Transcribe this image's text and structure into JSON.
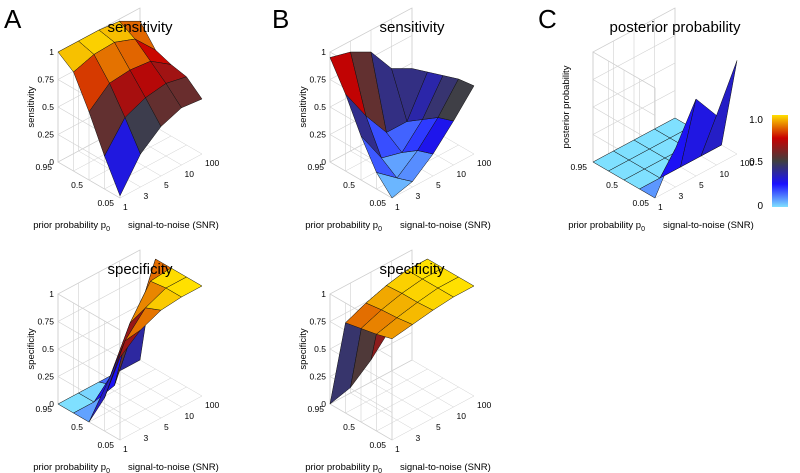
{
  "figure": {
    "panel_letters": [
      "A",
      "B",
      "C"
    ],
    "colorbar": {
      "ticks": [
        "1.0",
        "0.5",
        "0"
      ]
    }
  },
  "chart_data": [
    {
      "type": "surface",
      "panel": "A",
      "title": "sensitivity",
      "zlabel": "sensitivity",
      "xlabel": "prior probability p",
      "xlabel_subscript": "0",
      "ylabel": "signal-to-noise (SNR)",
      "x_ticks": [
        "0.05",
        "0.5",
        "0.95"
      ],
      "y_ticks": [
        "1",
        "3",
        "5",
        "10",
        "100"
      ],
      "z_ticks": [
        "0",
        "0.25",
        "0.5",
        "0.75",
        "1"
      ],
      "zlim": [
        0,
        1
      ],
      "prior": [
        0.05,
        0.25,
        0.5,
        0.75,
        0.95
      ],
      "snr": [
        1,
        3,
        5,
        10,
        100
      ],
      "z": [
        [
          0.02,
          0.3,
          0.45,
          0.52,
          0.5
        ],
        [
          0.3,
          0.55,
          0.63,
          0.66,
          0.62
        ],
        [
          0.62,
          0.78,
          0.8,
          0.78,
          0.65
        ],
        [
          0.9,
          0.96,
          0.97,
          0.9,
          0.7
        ],
        [
          1.0,
          1.0,
          1.0,
          0.98,
          0.88
        ]
      ]
    },
    {
      "type": "surface",
      "panel": "B",
      "title": "sensitivity",
      "zlabel": "sensitivity",
      "xlabel": "prior probability p",
      "xlabel_subscript": "0",
      "ylabel": "signal-to-noise (SNR)",
      "x_ticks": [
        "0.05",
        "0.5",
        "0.95"
      ],
      "y_ticks": [
        "1",
        "3",
        "5",
        "10",
        "100"
      ],
      "z_ticks": [
        "0",
        "0.25",
        "0.5",
        "0.75",
        "1"
      ],
      "zlim": [
        0,
        1
      ],
      "prior": [
        0.05,
        0.25,
        0.5,
        0.75,
        0.95
      ],
      "snr": [
        1,
        3,
        5,
        10,
        100
      ],
      "z": [
        [
          0.0,
          0.05,
          0.2,
          0.4,
          0.62
        ],
        [
          0.15,
          0.0,
          0.15,
          0.35,
          0.6
        ],
        [
          0.4,
          0.1,
          0.05,
          0.25,
          0.55
        ],
        [
          0.7,
          0.4,
          0.15,
          0.15,
          0.5
        ],
        [
          0.95,
          0.9,
          0.8,
          0.55,
          0.45
        ]
      ]
    },
    {
      "type": "surface",
      "panel": "C",
      "title": "posterior probability",
      "zlabel": "posterior probability",
      "xlabel": "prior probability p",
      "xlabel_subscript": "0",
      "ylabel": "signal-to-noise (SNR)",
      "x_ticks": [
        "0.05",
        "0.5",
        "0.95"
      ],
      "y_ticks": [
        "1",
        "3",
        "5",
        "10",
        "100"
      ],
      "z_ticks": [],
      "zlim": [
        0,
        1
      ],
      "prior": [
        0.05,
        0.25,
        0.5,
        0.75,
        0.95
      ],
      "snr": [
        1,
        3,
        5,
        10,
        100
      ],
      "z": [
        [
          0.0,
          0.35,
          0.7,
          0.45,
          0.85
        ],
        [
          0.0,
          0.0,
          0.0,
          0.0,
          0.0
        ],
        [
          0.0,
          0.0,
          0.0,
          0.0,
          0.0
        ],
        [
          0.0,
          0.0,
          0.0,
          0.0,
          0.0
        ],
        [
          0.0,
          0.0,
          0.0,
          0.0,
          0.0
        ]
      ]
    },
    {
      "type": "surface",
      "panel": "A",
      "title": "specificity",
      "zlabel": "specificity",
      "xlabel": "prior probability p",
      "xlabel_subscript": "0",
      "ylabel": "signal-to-noise (SNR)",
      "x_ticks": [
        "0.05",
        "0.5",
        "0.95"
      ],
      "y_ticks": [
        "1",
        "3",
        "5",
        "10",
        "100"
      ],
      "z_ticks": [
        "0",
        "0.25",
        "0.5",
        "0.75",
        "1"
      ],
      "zlim": [
        0,
        1
      ],
      "prior": [
        0.05,
        0.25,
        0.5,
        0.75,
        0.95
      ],
      "snr": [
        1,
        3,
        5,
        10,
        100
      ],
      "z": [
        [
          0.75,
          0.9,
          0.98,
          1.0,
          1.0
        ],
        [
          0.3,
          0.72,
          0.92,
          1.0,
          1.0
        ],
        [
          0.0,
          0.3,
          0.7,
          0.98,
          1.0
        ],
        [
          0.0,
          0.0,
          0.05,
          0.5,
          1.0
        ],
        [
          0.0,
          0.0,
          0.0,
          0.0,
          0.0
        ]
      ]
    },
    {
      "type": "surface",
      "panel": "B",
      "title": "specificity",
      "zlabel": "specificity",
      "xlabel": "prior probability p",
      "xlabel_subscript": "0",
      "ylabel": "signal-to-noise (SNR)",
      "x_ticks": [
        "0.05",
        "0.5",
        "0.95"
      ],
      "y_ticks": [
        "1",
        "3",
        "5",
        "10",
        "100"
      ],
      "z_ticks": [
        "0",
        "0.25",
        "0.5",
        "0.75",
        "1"
      ],
      "zlim": [
        0,
        1
      ],
      "prior": [
        0.05,
        0.25,
        0.5,
        0.75,
        0.95
      ],
      "snr": [
        1,
        3,
        5,
        10,
        100
      ],
      "z": [
        [
          0.92,
          0.95,
          0.98,
          1.0,
          1.0
        ],
        [
          0.88,
          0.93,
          0.97,
          1.0,
          1.0
        ],
        [
          0.85,
          0.92,
          0.97,
          1.0,
          1.0
        ],
        [
          0.82,
          0.9,
          0.96,
          1.0,
          1.0
        ],
        [
          0.0,
          0.05,
          0.2,
          0.4,
          0.6
        ]
      ]
    }
  ]
}
